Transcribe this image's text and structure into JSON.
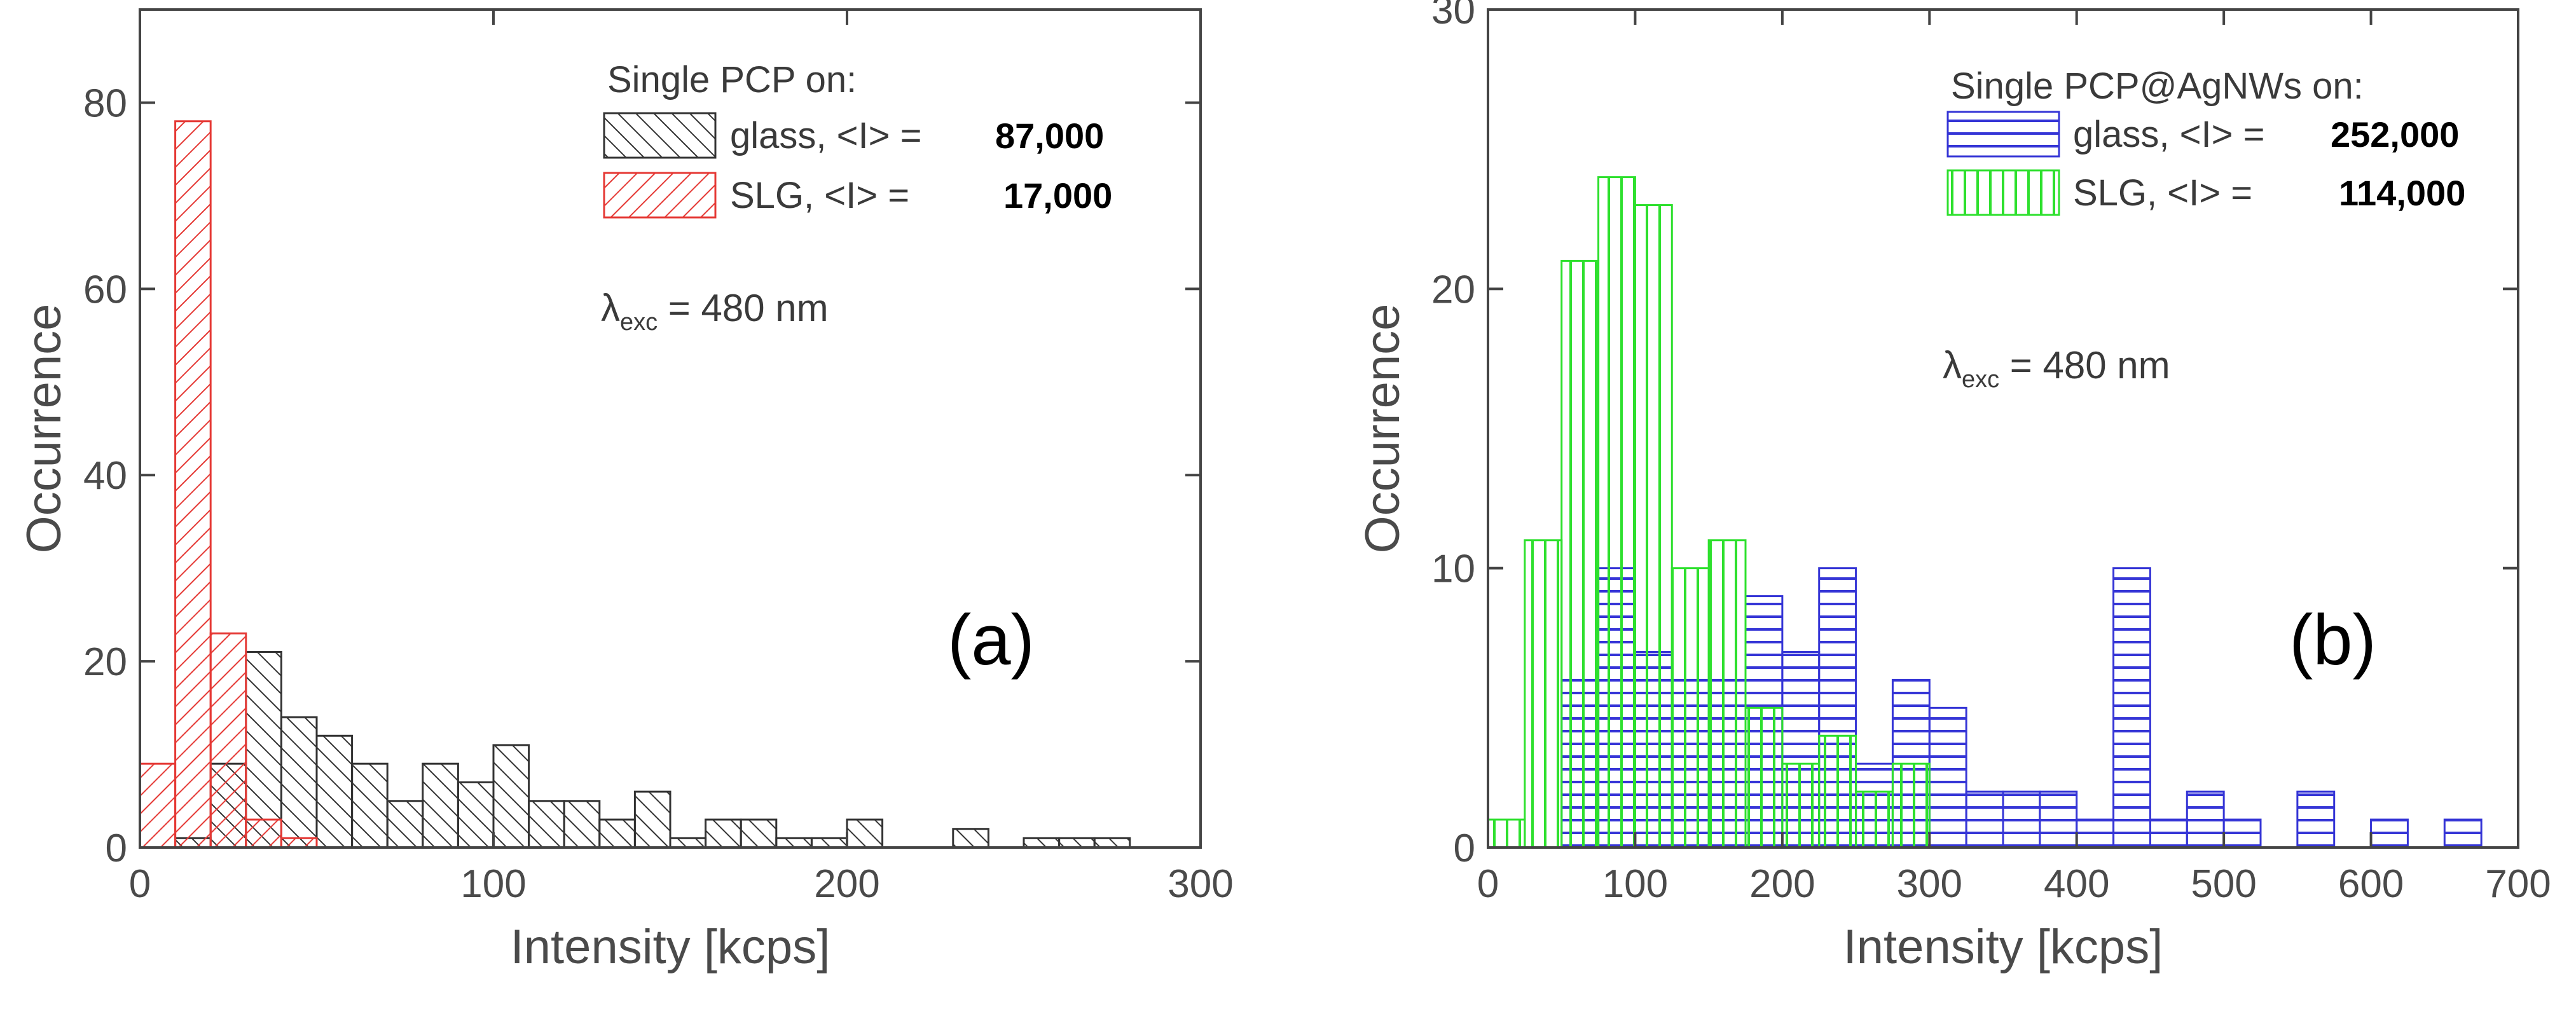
{
  "chart_data": [
    {
      "type": "bar",
      "panel_label": "(a)",
      "xlabel": "Intensity [kcps]",
      "ylabel": "Occurrence",
      "xlim": [
        0,
        300
      ],
      "ylim": [
        0,
        90
      ],
      "xticks": [
        "0",
        "100",
        "200",
        "300"
      ],
      "yticks": [
        "0",
        "20",
        "40",
        "60",
        "80"
      ],
      "bin_width": 10,
      "legend_title": "Single PCP on:",
      "annotation_sym": "λ",
      "annotation_sub": "exc",
      "annotation_rest": " = 480 nm",
      "series": [
        {
          "name": "glass, <I> =",
          "mean": "87,000",
          "color": "#333333",
          "pattern": "diag-back",
          "bins": [
            [
              10,
              1
            ],
            [
              20,
              9
            ],
            [
              30,
              21
            ],
            [
              40,
              14
            ],
            [
              50,
              12
            ],
            [
              60,
              9
            ],
            [
              70,
              5
            ],
            [
              80,
              9
            ],
            [
              90,
              7
            ],
            [
              100,
              11
            ],
            [
              110,
              5
            ],
            [
              120,
              5
            ],
            [
              130,
              3
            ],
            [
              140,
              6
            ],
            [
              150,
              1
            ],
            [
              160,
              3
            ],
            [
              170,
              3
            ],
            [
              180,
              1
            ],
            [
              190,
              1
            ],
            [
              200,
              3
            ],
            [
              230,
              2
            ],
            [
              250,
              1
            ],
            [
              260,
              1
            ],
            [
              270,
              1
            ]
          ]
        },
        {
          "name": "SLG, <I> =",
          "mean": "17,000",
          "color": "#e53935",
          "pattern": "diag-fwd",
          "bins": [
            [
              0,
              9
            ],
            [
              10,
              78
            ],
            [
              20,
              23
            ],
            [
              30,
              3
            ],
            [
              40,
              1
            ]
          ]
        }
      ]
    },
    {
      "type": "bar",
      "panel_label": "(b)",
      "xlabel": "Intensity [kcps]",
      "ylabel": "Occurrence",
      "xlim": [
        0,
        700
      ],
      "ylim": [
        0,
        30
      ],
      "xticks": [
        "0",
        "100",
        "200",
        "300",
        "400",
        "500",
        "600",
        "700"
      ],
      "yticks": [
        "0",
        "10",
        "20",
        "30"
      ],
      "bin_width": 25,
      "legend_title": "Single PCP@AgNWs on:",
      "annotation_sym": "λ",
      "annotation_sub": "exc",
      "annotation_rest": " = 480 nm",
      "series": [
        {
          "name": "glass, <I> =",
          "mean": "252,000",
          "color": "#3535d6",
          "pattern": "horizontal",
          "bins": [
            [
              50,
              6
            ],
            [
              75,
              10
            ],
            [
              100,
              7
            ],
            [
              125,
              6
            ],
            [
              150,
              6
            ],
            [
              175,
              9
            ],
            [
              200,
              7
            ],
            [
              225,
              10
            ],
            [
              250,
              3
            ],
            [
              275,
              6
            ],
            [
              300,
              5
            ],
            [
              325,
              2
            ],
            [
              350,
              2
            ],
            [
              375,
              2
            ],
            [
              400,
              1
            ],
            [
              425,
              10
            ],
            [
              450,
              1
            ],
            [
              475,
              2
            ],
            [
              500,
              1
            ],
            [
              550,
              2
            ],
            [
              600,
              1
            ],
            [
              650,
              1
            ]
          ]
        },
        {
          "name": "SLG, <I> =",
          "mean": "114,000",
          "color": "#2ee02e",
          "pattern": "vertical",
          "bins": [
            [
              0,
              1
            ],
            [
              25,
              11
            ],
            [
              50,
              21
            ],
            [
              75,
              24
            ],
            [
              100,
              23
            ],
            [
              125,
              10
            ],
            [
              150,
              11
            ],
            [
              175,
              5
            ],
            [
              200,
              3
            ],
            [
              225,
              4
            ],
            [
              250,
              2
            ],
            [
              275,
              3
            ]
          ]
        }
      ]
    }
  ]
}
